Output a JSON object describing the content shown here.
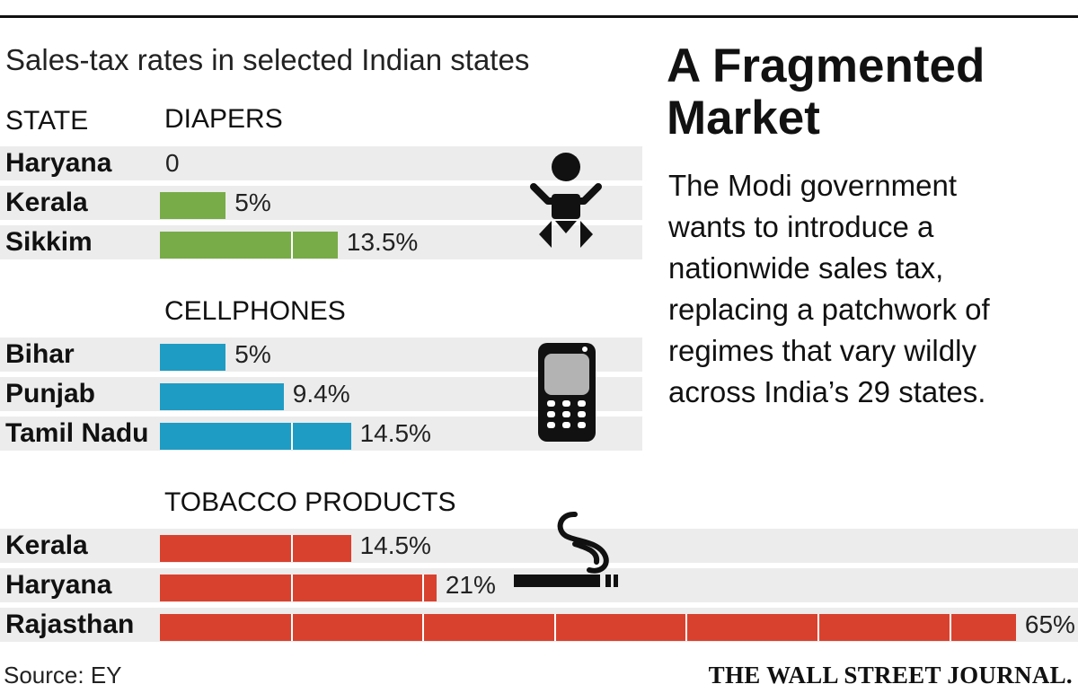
{
  "subtitle": "Sales-tax rates in selected Indian states",
  "headers": {
    "state": "STATE",
    "diapers": "DIAPERS",
    "cellphones": "CELLPHONES",
    "tobacco": "TOBACCO PRODUCTS"
  },
  "headline": {
    "line1": "A Fragmented",
    "line2": "Market"
  },
  "body": {
    "lines": [
      "The Modi government",
      "wants to introduce a",
      "nationwide sales tax,",
      "replacing a patchwork of",
      "regimes that vary wildly",
      "across India’s 29 states."
    ]
  },
  "source": "Source: EY",
  "brand": "THE WALL STREET JOURNAL.",
  "colors": {
    "diapers": "#78ac48",
    "cellphones": "#1f9cc4",
    "tobacco": "#d9412f",
    "row_bg": "#ececec"
  },
  "icons": {
    "diapers": "baby-icon",
    "cellphones": "mobile-phone-icon",
    "tobacco": "cigarette-icon"
  },
  "chart_data": {
    "type": "bar",
    "title": "Sales-tax rates in selected Indian states",
    "unit": "%",
    "groups": [
      {
        "name": "DIAPERS",
        "categories": [
          "Haryana",
          "Kerala",
          "Sikkim"
        ],
        "values": [
          0,
          5,
          13.5
        ],
        "labels": [
          "0",
          "5%",
          "13.5%"
        ]
      },
      {
        "name": "CELLPHONES",
        "categories": [
          "Bihar",
          "Punjab",
          "Tamil Nadu"
        ],
        "values": [
          5,
          9.4,
          14.5
        ],
        "labels": [
          "5%",
          "9.4%",
          "14.5%"
        ]
      },
      {
        "name": "TOBACCO PRODUCTS",
        "categories": [
          "Kerala",
          "Haryana",
          "Rajasthan"
        ],
        "values": [
          14.5,
          21,
          65
        ],
        "labels": [
          "14.5%",
          "21%",
          "65%"
        ]
      }
    ]
  }
}
